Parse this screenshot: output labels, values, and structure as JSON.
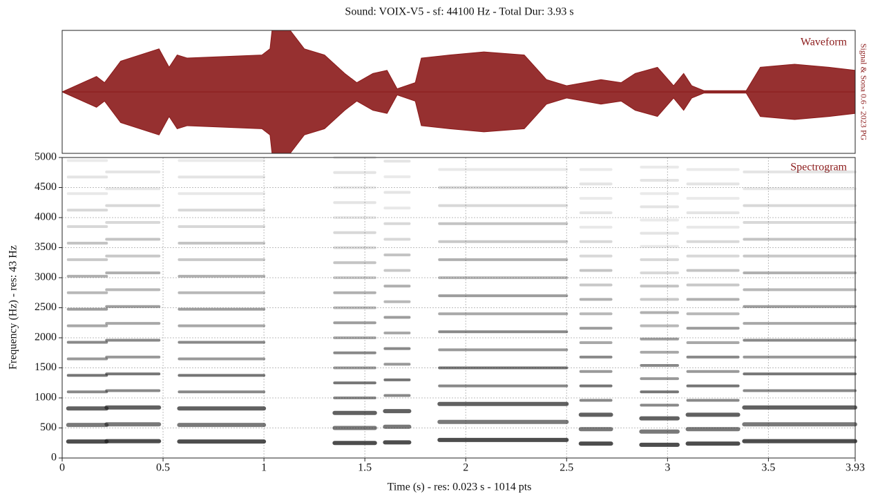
{
  "chart_data": {
    "type": "spectrogram",
    "title": "Sound: VOIX-V5 - sf: 44100 Hz - Total Dur: 3.93 s",
    "watermark": "Signal & Sona 0.6 - 2023 PG",
    "xlabel": "Time (s) - res: 0.023 s - 1014 pts",
    "xlim": [
      0,
      3.93
    ],
    "xticks": [
      0,
      0.5,
      1,
      1.5,
      2,
      2.5,
      3,
      3.5,
      3.93
    ],
    "grid": true,
    "waveform": {
      "label": "Waveform",
      "color": "#8b1a1a",
      "ylim": [
        -1,
        1
      ],
      "x": [
        0,
        0.17,
        0.21,
        0.29,
        0.48,
        0.53,
        0.57,
        0.62,
        0.99,
        1.03,
        1.04,
        1.13,
        1.2,
        1.3,
        1.4,
        1.46,
        1.54,
        1.61,
        1.66,
        1.75,
        1.78,
        1.92,
        2.09,
        2.29,
        2.4,
        2.5,
        2.67,
        2.77,
        2.84,
        2.95,
        3.03,
        3.08,
        3.12,
        3.18,
        3.39,
        3.46,
        3.63,
        3.8,
        3.93
      ],
      "values": [
        0,
        0.25,
        0.15,
        0.5,
        0.7,
        0.4,
        0.6,
        0.55,
        0.6,
        0.7,
        1,
        1,
        0.7,
        0.6,
        0.3,
        0.15,
        0.3,
        0.35,
        0.05,
        0.15,
        0.55,
        0.6,
        0.65,
        0.6,
        0.2,
        0.1,
        0.2,
        0.15,
        0.3,
        0.4,
        0.1,
        0.3,
        0.1,
        0.02,
        0.02,
        0.4,
        0.45,
        0.4,
        0.35
      ]
    },
    "spectrogram": {
      "label": "Spectrogram",
      "ylabel": "Frequency (Hz) - res: 43 Hz",
      "ylim": [
        0,
        5000
      ],
      "yticks": [
        0,
        500,
        1000,
        1500,
        2000,
        2500,
        3000,
        3500,
        4000,
        4500,
        5000
      ],
      "segments": [
        {
          "start": 0.03,
          "end": 0.22,
          "f0": 275
        },
        {
          "start": 0.22,
          "end": 0.48,
          "f0": 280
        },
        {
          "start": 0.58,
          "end": 1.0,
          "f0": 275
        },
        {
          "start": 1.35,
          "end": 1.55,
          "f0": 250
        },
        {
          "start": 1.6,
          "end": 1.72,
          "f0": 260
        },
        {
          "start": 1.87,
          "end": 2.5,
          "f0": 300
        },
        {
          "start": 2.57,
          "end": 2.72,
          "f0": 240
        },
        {
          "start": 2.87,
          "end": 3.05,
          "f0": 220
        },
        {
          "start": 3.1,
          "end": 3.35,
          "f0": 240
        },
        {
          "start": 3.38,
          "end": 3.93,
          "f0": 280
        }
      ]
    }
  }
}
